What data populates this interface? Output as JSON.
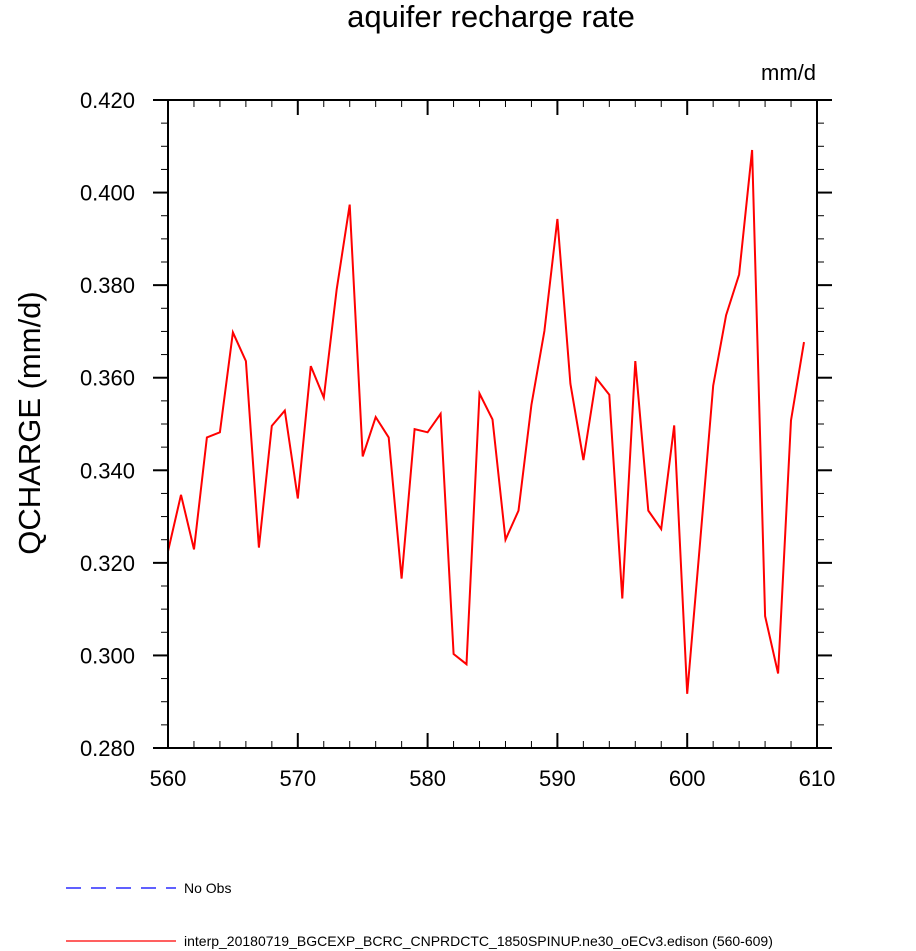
{
  "chart_data": {
    "type": "line",
    "title": "aquifer recharge rate",
    "units_label": "mm/d",
    "ylabel": "QCHARGE  (mm/d)",
    "xlabel": "",
    "xlim": [
      560,
      610
    ],
    "ylim": [
      0.28,
      0.42
    ],
    "x_ticks": [
      "560",
      "570",
      "580",
      "590",
      "600",
      "610"
    ],
    "y_ticks": [
      "0.280",
      "0.300",
      "0.320",
      "0.340",
      "0.360",
      "0.380",
      "0.400",
      "0.420"
    ],
    "grid": false,
    "legend_position": "bottom-left",
    "series": [
      {
        "name": "interp_20180719_BGCEXP_BCRC_CNPRDCTC_1850SPINUP.ne30_oECv3.edison (560-609)",
        "color": "#ff0000",
        "dash": "solid",
        "x": [
          560,
          561,
          562,
          563,
          564,
          565,
          566,
          567,
          568,
          569,
          570,
          571,
          572,
          573,
          574,
          575,
          576,
          577,
          578,
          579,
          580,
          581,
          582,
          583,
          584,
          585,
          586,
          587,
          588,
          589,
          590,
          591,
          592,
          593,
          594,
          595,
          596,
          597,
          598,
          599,
          600,
          601,
          602,
          603,
          604,
          605,
          606,
          607,
          608,
          609
        ],
        "values": [
          0.3225,
          0.3347,
          0.3229,
          0.3471,
          0.3482,
          0.3698,
          0.3636,
          0.3233,
          0.3496,
          0.3529,
          0.3339,
          0.3625,
          0.3557,
          0.3791,
          0.3974,
          0.343,
          0.3515,
          0.3471,
          0.3166,
          0.3489,
          0.3482,
          0.3522,
          0.3003,
          0.2981,
          0.3566,
          0.351,
          0.325,
          0.3313,
          0.3541,
          0.3701,
          0.3943,
          0.3587,
          0.3422,
          0.3599,
          0.3563,
          0.3123,
          0.3636,
          0.3313,
          0.3273,
          0.3497,
          0.2917,
          0.3247,
          0.3583,
          0.3735,
          0.3823,
          0.4092,
          0.3085,
          0.2961,
          0.3508,
          0.3677
        ]
      }
    ],
    "legend": [
      {
        "label": "No Obs",
        "color": "#0000ff",
        "dash": "dashed"
      },
      {
        "label": "interp_20180719_BGCEXP_BCRC_CNPRDCTC_1850SPINUP.ne30_oECv3.edison (560-609)",
        "color": "#ff0000",
        "dash": "solid"
      }
    ]
  }
}
